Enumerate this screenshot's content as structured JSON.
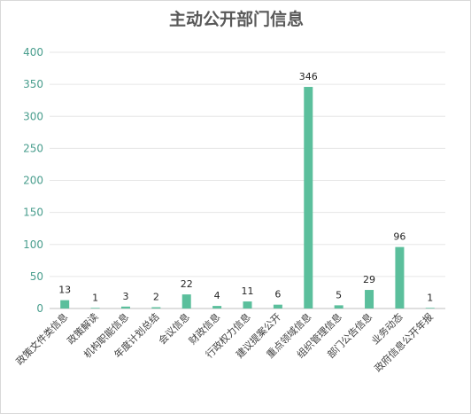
{
  "chart_data": {
    "type": "bar",
    "title": "主动公开部门信息",
    "categories": [
      "政策文件类信息",
      "政策解读",
      "机构职能信息",
      "年度计划总结",
      "会议信息",
      "财政信息",
      "行政权力信息",
      "建议提案公开",
      "重点领域信息",
      "组织管理信息",
      "部门公告信息",
      "业务动态",
      "政府信息公开年报"
    ],
    "values": [
      13,
      1,
      3,
      2,
      22,
      4,
      11,
      6,
      346,
      5,
      29,
      96,
      1
    ],
    "ylim": [
      0,
      400
    ],
    "yticks": [
      0,
      50,
      100,
      150,
      200,
      250,
      300,
      350,
      400
    ],
    "grid": true,
    "legend": "none",
    "bar_color": "#5bbf9c",
    "axis_label_color": "#4a9e8e"
  }
}
